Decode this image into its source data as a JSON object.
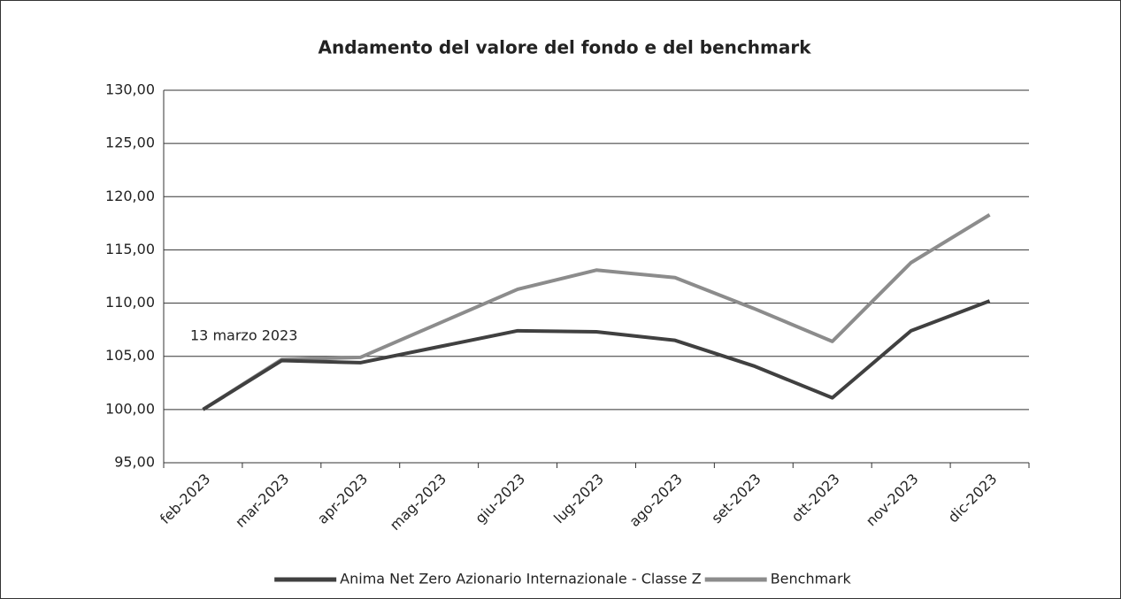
{
  "chart_data": {
    "type": "line",
    "title": "Andamento del valore del fondo e del benchmark",
    "categories": [
      "feb-2023",
      "mar-2023",
      "apr-2023",
      "mag-2023",
      "giu-2023",
      "lug-2023",
      "ago-2023",
      "set-2023",
      "ott-2023",
      "nov-2023",
      "dic-2023"
    ],
    "series": [
      {
        "name": "Anima Net Zero Azionario Internazionale - Classe Z",
        "color": "#404040",
        "values": [
          100,
          104.6,
          104.4,
          105.9,
          107.4,
          107.3,
          106.5,
          104.1,
          101.1,
          107.4,
          110.2
        ]
      },
      {
        "name": "Benchmark",
        "color": "#8c8c8c",
        "values": [
          100,
          104.7,
          104.9,
          108.1,
          111.3,
          113.1,
          112.4,
          109.5,
          106.4,
          113.8,
          118.3
        ]
      }
    ],
    "ylim": [
      95,
      130
    ],
    "yticks": [
      {
        "value": 95,
        "label": "95,00"
      },
      {
        "value": 100,
        "label": "100,00"
      },
      {
        "value": 105,
        "label": "105,00"
      },
      {
        "value": 110,
        "label": "110,00"
      },
      {
        "value": 115,
        "label": "115,00"
      },
      {
        "value": 120,
        "label": "120,00"
      },
      {
        "value": 125,
        "label": "125,00"
      },
      {
        "value": 130,
        "label": "130,00"
      }
    ],
    "grid": true,
    "annotations": [
      {
        "text": "13 marzo 2023"
      }
    ],
    "legend": "bottom"
  }
}
